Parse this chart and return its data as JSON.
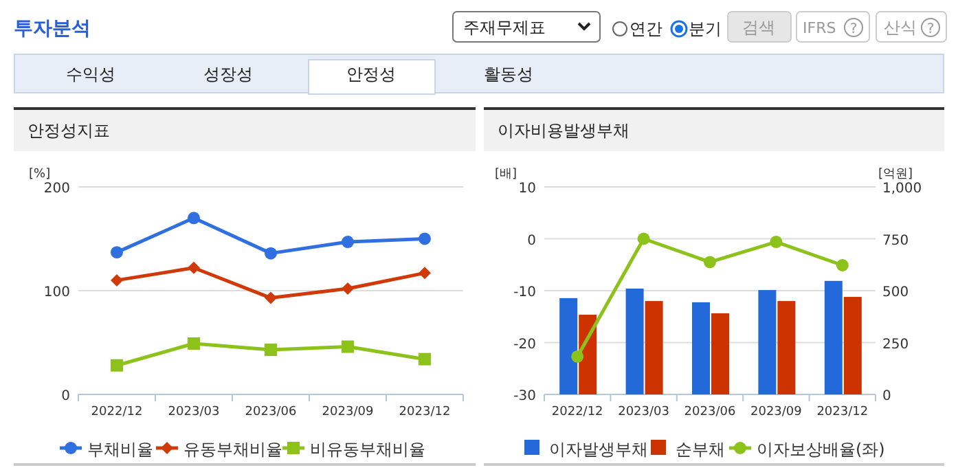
{
  "chart_data": [
    {
      "type": "other",
      "title": "투자분석",
      "annotations": [
        "주재무제표",
        "연간",
        "분기",
        "검색",
        "IFRS",
        "?",
        "산식",
        "?",
        "수익성",
        "성장성",
        "안정성",
        "활동성"
      ]
    },
    {
      "type": "line",
      "title": "안정성지표",
      "ylabel": "[%]",
      "categories": [
        "2022/12",
        "2023/03",
        "2023/06",
        "2023/09",
        "2023/12"
      ],
      "ylim": [
        0,
        200
      ],
      "yticks": [
        0,
        100,
        200
      ],
      "grid": "y",
      "legend": "bottom",
      "series": [
        {
          "name": "부채비율",
          "color": "#2f6fe0",
          "marker": "circle",
          "values": [
            137,
            170,
            136,
            147,
            150
          ]
        },
        {
          "name": "유동부채비율",
          "color": "#d03a0a",
          "marker": "diamond",
          "values": [
            110,
            122,
            93,
            102,
            117
          ]
        },
        {
          "name": "비유동부채비율",
          "color": "#8cc21a",
          "marker": "square",
          "values": [
            28,
            49,
            43,
            46,
            34
          ]
        }
      ]
    },
    {
      "type": "bar",
      "title": "이자비용발생부채",
      "ylabel": "[배]",
      "y2label": "[억원]",
      "categories": [
        "2022/12",
        "2023/03",
        "2023/06",
        "2023/09",
        "2023/12"
      ],
      "ylim": [
        -30,
        10
      ],
      "yticks": [
        -30,
        -20,
        -10,
        0,
        10
      ],
      "y2lim": [
        0,
        1000
      ],
      "y2ticks": [
        0,
        250,
        500,
        750,
        {
          "value": 1000,
          "label": "1,000"
        }
      ],
      "grid": "y",
      "legend": "bottom",
      "series": [
        {
          "name": "이자발생부채",
          "type": "bar",
          "axis": "y2",
          "color": "#2469d9",
          "values": [
            464,
            510,
            444,
            503,
            547
          ]
        },
        {
          "name": "순부채",
          "type": "bar",
          "axis": "y2",
          "color": "#cc3300",
          "values": [
            384,
            450,
            391,
            450,
            470
          ]
        },
        {
          "name": "이자보상배율(좌)",
          "type": "line",
          "axis": "y",
          "marker": "circle",
          "color": "#8cc21a",
          "values": [
            -22.7,
            0,
            -4.5,
            -0.6,
            -5.1
          ]
        }
      ]
    }
  ]
}
